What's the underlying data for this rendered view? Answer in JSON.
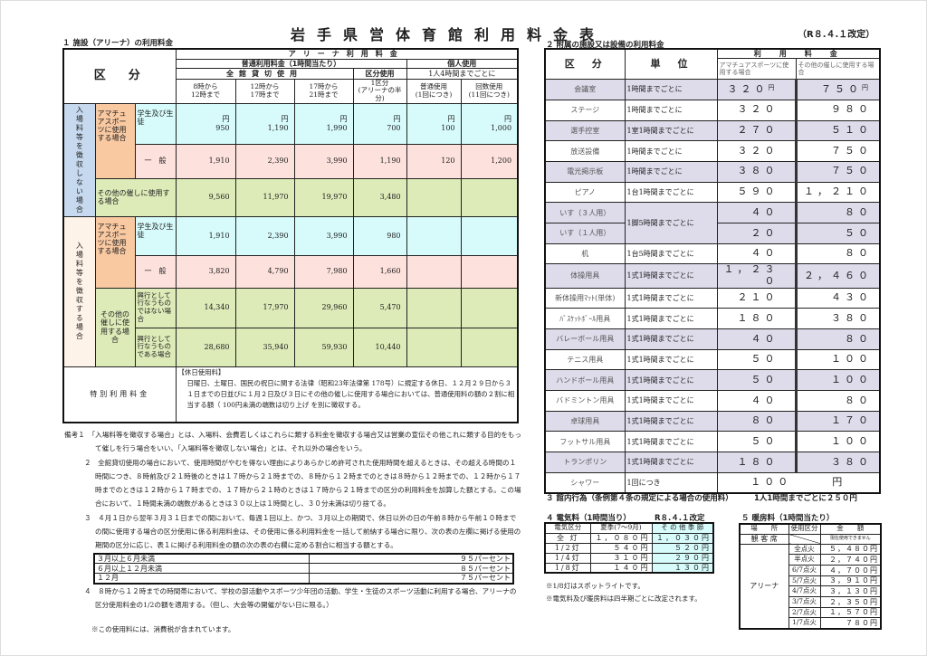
{
  "title": "岩手県営体育館利用料金表",
  "revision": "（R８.４.１改定）",
  "s1": {
    "heading": "１ 施設（アリーナ）の利用料金",
    "h_kubun": "区　分",
    "h_arena": "アリーナ利用料金",
    "h_normal": "普通利用料金（1時間当たり）",
    "h_personal": "個人使用",
    "h_full": "全館貸切使用",
    "h_section": "区分使用",
    "h_per4": "1人4時間までごとに",
    "h_cols": [
      [
        "8時から",
        "12時まで"
      ],
      [
        "12時から",
        "17時まで"
      ],
      [
        "17時から",
        "21時まで"
      ],
      [
        "1区分",
        "(アリーナの半分)"
      ],
      [
        "普通使用",
        "(1回につき)"
      ],
      [
        "回数使用",
        "(11回につき)"
      ]
    ],
    "yen": "円",
    "g_nofee": "入場料等を徴収しない場合",
    "g_fee": "入場料等を徴収する場合",
    "amateur": "アマチュアスポーツに使用する場合",
    "other": "その他の催しに使用する場合",
    "student": "学生及び生徒",
    "general": "一　般",
    "not_kogyo": "興行として行なうものではない場合",
    "kogyo": "興行として行なうものである場合",
    "rows": [
      [
        "950",
        "1,190",
        "1,990",
        "700",
        "100",
        "1,000"
      ],
      [
        "1,910",
        "2,390",
        "3,990",
        "1,190",
        "120",
        "1,200"
      ],
      [
        "9,560",
        "11,970",
        "19,970",
        "3,480",
        "",
        ""
      ],
      [
        "1,910",
        "2,390",
        "3,990",
        "980",
        "",
        ""
      ],
      [
        "3,820",
        "4,790",
        "7,980",
        "1,660",
        "",
        ""
      ],
      [
        "14,340",
        "17,970",
        "29,960",
        "5,470",
        "",
        ""
      ],
      [
        "28,680",
        "35,940",
        "59,930",
        "10,440",
        "",
        ""
      ]
    ],
    "special_label": "特別利用料金",
    "special_title": "【休日使用料】",
    "special_text": "日曜日、土曜日、国民の祝日に関する法律（昭和23年法律第 178号）に規定する休日、１２月２９日から３１日までの日並びに１月２日及び３日にその他の催しに使用する場合においては、普通使用料の額の２割に相当する額（ 100円未満の端数は切り上げ を別に徴収する。"
  },
  "notes": {
    "n1": "備考１　「入場料等を徴収する場合」とは、入場料、会費若しくはこれらに類する料金を徴収する場合又は営業の宣伝その他これに類する目的をもって催しを行う場合をいい、「入場料等を徴収しない場合」とは、それ以外の場合をいう。",
    "n2": "２　全館貸切使用の場合において、使用時間がやむを得ない理由によりあらかじめ許可された使用時間を超えるときは、その超える時間の１時間につき、８時前及び２１時後のときは１７時から２１時までの、８時から１２時までのときは８時から１２時までの、１２時から１７時までのときは１２時から１７時までの、１７時から２１時のときは１７時から２１時までの区分の利用料金を加算した額とする。この場合において、１時間未満の端数があるときは３０以上は１時間とし、３０分未満は切り捨てる。",
    "n3": "３　４月１日から翌年３月３１日までの間において、毎週１回以上、かつ、３月以上の期間で、休日以外の日の午前８時から午前１０時までの間に使用する場合の区分使用に係る利用料金は、その使用に係る利用料金を一括して前納する場合に限り、次の表の左欄に掲げる使用の期間の区分に応じ、表１に掲げる利用料金の額の次の表の右欄に定める割合に相当する額とする。",
    "discount": [
      [
        "３月以上６月未満",
        "９５パーセント"
      ],
      [
        "６月以上１２月未満",
        "８５パーセント"
      ],
      [
        "１２月",
        "７５パーセント"
      ]
    ],
    "n4": "４　８時から１２時までの時間帯において、学校の部活動やスポーツ少年団の活動、学生・生徒のスポーツ活動に利用する場合、アリーナの区分使用料金の1/2の額を適用する。（但し、大会等の開催がない日に限る。）",
    "tax": "※この使用料には、消費税が含まれています。"
  },
  "s2": {
    "heading": "２ 附属の施設又は設備の利用料金",
    "h_kubun": "区　分",
    "h_unit": "単　位",
    "h_fee": "利　用　料　金",
    "h_amateur": "アマチュアスポーツに使用する場合",
    "h_other": "その他の催しに使用する場合",
    "yen": "円",
    "rows": [
      {
        "name": "会議室",
        "unit": "1時間までごとに",
        "a": "３２０",
        "b": "７５０"
      },
      {
        "name": "ステージ",
        "unit": "1時間までごとに",
        "a": "３２０",
        "b": "９８０"
      },
      {
        "name": "選手控室",
        "unit": "1室1時間までごとに",
        "a": "２７０",
        "b": "５１０"
      },
      {
        "name": "放送設備",
        "unit": "1時間までごとに",
        "a": "３２０",
        "b": "７５０"
      },
      {
        "name": "電光掲示板",
        "unit": "1時間までごとに",
        "a": "３８０",
        "b": "７５０"
      },
      {
        "name": "ピアノ",
        "unit": "1台1時間までごとに",
        "a": "５９０",
        "b": "１，２１０"
      },
      {
        "name": "いす（３人用）",
        "unit": "1脚5時間までごとに",
        "a": "４０",
        "b": "８０"
      },
      {
        "name": "いす（１人用）",
        "unit": "",
        "a": "２０",
        "b": "５０"
      },
      {
        "name": "机",
        "unit": "1台5時間までごとに",
        "a": "４０",
        "b": "８０"
      },
      {
        "name": "体操用具",
        "unit": "1式1時間までごとに",
        "a": "１，２３０",
        "b": "２，４６０"
      },
      {
        "name": "新体操用ﾏｯﾄ(単体)",
        "unit": "1式1時間までごとに",
        "a": "２１０",
        "b": "４３０"
      },
      {
        "name": "ﾊﾞｽｹｯﾄﾎﾞｰﾙ用具",
        "unit": "1式1時間までごとに",
        "a": "１８０",
        "b": "３８０"
      },
      {
        "name": "バレーボール用具",
        "unit": "1式1時間までごとに",
        "a": "４０",
        "b": "８０"
      },
      {
        "name": "テニス用具",
        "unit": "1式1時間までごとに",
        "a": "５０",
        "b": "１００"
      },
      {
        "name": "ハンドボール用具",
        "unit": "1式1時間までごとに",
        "a": "５０",
        "b": "１００"
      },
      {
        "name": "バドミントン用具",
        "unit": "1式1時間までごとに",
        "a": "４０",
        "b": "８０"
      },
      {
        "name": "卓球用具",
        "unit": "1式1時間までごとに",
        "a": "８０",
        "b": "１７０"
      },
      {
        "name": "フットサル用具",
        "unit": "1式1時間までごとに",
        "a": "５０",
        "b": "１００"
      },
      {
        "name": "トランポリン",
        "unit": "1式1時間までごとに",
        "a": "１８０",
        "b": "３８０"
      }
    ],
    "shower": {
      "name": "シャワー",
      "unit": "1回につき",
      "fee": "１００　　　円"
    }
  },
  "s3": {
    "heading": "３ 館内行為（条例第４条の規定による場合の使用料）",
    "fee": "1人1時間までごとに２５０円"
  },
  "s4": {
    "heading": "４ 電気料（1時間当り）",
    "revision": "R８.４.１改定",
    "header": [
      "電気区分",
      "夏季(7～9月)",
      "そ の 他 季 節"
    ],
    "rows": [
      [
        "全 灯",
        "１，０８０円",
        "１，０３０円"
      ],
      [
        "1/2灯",
        "５４０円",
        "５２０円"
      ],
      [
        "1/4灯",
        "３１０円",
        "２９０円"
      ],
      [
        "1/8灯",
        "１４０円",
        "１３０円"
      ]
    ],
    "note1": "※1/8灯はスポットライトです。",
    "note2": "※電気料及び暖房料は四半期ごとに改定されます。"
  },
  "s5": {
    "heading": "５ 暖房料（1時間当たり）",
    "header": [
      "場　　所",
      "使用区分",
      "金　　額"
    ],
    "stand": "観 客 席",
    "stand_note": "現在使用できません",
    "arena": "アリーナ",
    "rows": [
      [
        "全点火",
        "５，４８０円"
      ],
      [
        "半点火",
        "２，７４０円"
      ],
      [
        "6/7点火",
        "４，７００円"
      ],
      [
        "5/7点火",
        "３，９１０円"
      ],
      [
        "4/7点火",
        "３，１３０円"
      ],
      [
        "3/7点火",
        "２，３５０円"
      ],
      [
        "2/7点火",
        "１，５７０円"
      ],
      [
        "1/7点火",
        "７８０円"
      ]
    ]
  }
}
